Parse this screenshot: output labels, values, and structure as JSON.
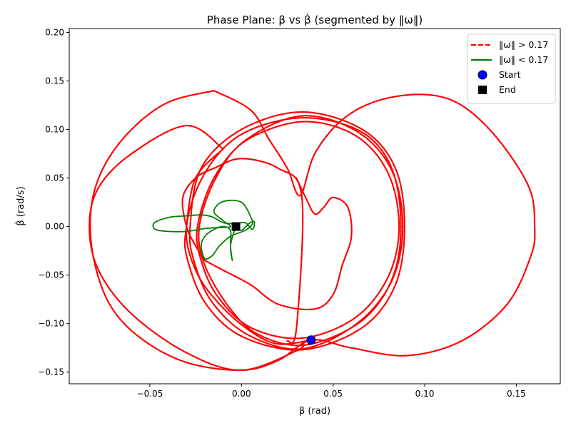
{
  "chart_data": {
    "type": "line",
    "title": "Phase Plane: β vs β̇ (segmented by ‖ω‖)",
    "xlabel": "β (rad)",
    "ylabel": "β̇ (rad/s)",
    "xlim": [
      -0.094,
      0.174
    ],
    "ylim": [
      -0.162,
      0.204
    ],
    "xticks": [
      -0.05,
      0.0,
      0.05,
      0.1,
      0.15
    ],
    "xtick_labels": [
      "−0.05",
      "0.00",
      "0.05",
      "0.10",
      "0.15"
    ],
    "yticks": [
      -0.15,
      -0.1,
      -0.05,
      0.0,
      0.05,
      0.1,
      0.15,
      0.2
    ],
    "ytick_labels": [
      "−0.15",
      "−0.10",
      "−0.05",
      "0.00",
      "0.05",
      "0.10",
      "0.15",
      "0.20"
    ],
    "grid": false,
    "legend_position": "top-right",
    "legend": [
      {
        "label": "‖ω‖ > 0.17",
        "style": "dashed-line",
        "color": "#ff0000"
      },
      {
        "label": "‖ω‖ < 0.17",
        "style": "solid-line",
        "color": "#008000"
      },
      {
        "label": "Start",
        "style": "circle-marker",
        "color": "#0000ff"
      },
      {
        "label": "End",
        "style": "square-marker",
        "color": "#000000"
      }
    ],
    "series": [
      {
        "name": "‖ω‖ > 0.17",
        "color": "#ff0000",
        "style": "dashed",
        "segments": [
          [
            [
              0.038,
              -0.117
            ],
            [
              0.02,
              -0.121
            ],
            [
              0.005,
              -0.108
            ],
            [
              -0.012,
              -0.08
            ],
            [
              -0.025,
              -0.045
            ],
            [
              -0.03,
              0.0
            ],
            [
              -0.02,
              0.055
            ],
            [
              0.0,
              0.095
            ],
            [
              0.033,
              0.112
            ],
            [
              0.065,
              0.098
            ],
            [
              0.082,
              0.06
            ],
            [
              0.087,
              0.0
            ],
            [
              0.082,
              -0.055
            ],
            [
              0.065,
              -0.098
            ],
            [
              0.035,
              -0.122
            ],
            [
              0.01,
              -0.112
            ],
            [
              -0.006,
              -0.085
            ],
            [
              -0.02,
              -0.04
            ],
            [
              -0.023,
              0.0
            ],
            [
              -0.014,
              0.05
            ],
            [
              0.002,
              0.088
            ],
            [
              0.033,
              0.108
            ],
            [
              0.062,
              0.094
            ],
            [
              0.08,
              0.055
            ],
            [
              0.086,
              0.0
            ],
            [
              0.08,
              -0.052
            ],
            [
              0.062,
              -0.094
            ],
            [
              0.033,
              -0.115
            ],
            [
              0.005,
              -0.104
            ],
            [
              -0.013,
              -0.072
            ],
            [
              -0.022,
              -0.035
            ],
            [
              -0.024,
              0.0
            ],
            [
              -0.015,
              0.05
            ],
            [
              0.003,
              0.09
            ],
            [
              0.033,
              0.114
            ],
            [
              0.063,
              0.098
            ],
            [
              0.082,
              0.058
            ],
            [
              0.088,
              0.0
            ],
            [
              0.082,
              -0.056
            ],
            [
              0.063,
              -0.1
            ],
            [
              0.033,
              -0.126
            ],
            [
              0.004,
              -0.112
            ],
            [
              -0.016,
              -0.078
            ],
            [
              -0.026,
              -0.035
            ],
            [
              -0.028,
              0.0
            ],
            [
              -0.022,
              0.06
            ],
            [
              0.0,
              0.1
            ],
            [
              0.033,
              0.118
            ],
            [
              0.066,
              0.1
            ],
            [
              0.084,
              0.06
            ],
            [
              0.089,
              0.0
            ],
            [
              0.084,
              -0.06
            ],
            [
              0.066,
              -0.104
            ],
            [
              0.033,
              -0.127
            ],
            [
              0.0,
              -0.113
            ],
            [
              -0.02,
              -0.078
            ],
            [
              -0.03,
              -0.03
            ],
            [
              -0.03,
              0.0
            ],
            [
              -0.025,
              0.05
            ],
            [
              -0.01,
              0.08
            ]
          ],
          [
            [
              -0.01,
              0.08
            ],
            [
              -0.03,
              0.104
            ],
            [
              -0.06,
              0.075
            ],
            [
              -0.078,
              0.04
            ],
            [
              -0.083,
              0.0
            ],
            [
              -0.078,
              -0.045
            ],
            [
              -0.06,
              -0.09
            ],
            [
              -0.03,
              -0.13
            ],
            [
              0.0,
              -0.148
            ],
            [
              0.03,
              -0.128
            ],
            [
              0.034,
              -0.12
            ]
          ],
          [
            [
              0.025,
              -0.118
            ],
            [
              0.03,
              -0.105
            ],
            [
              0.033,
              0.03
            ],
            [
              0.02,
              0.06
            ],
            [
              0.0,
              0.07
            ],
            [
              -0.015,
              0.06
            ],
            [
              -0.025,
              0.05
            ],
            [
              -0.032,
              0.03
            ],
            [
              -0.03,
              0.0
            ],
            [
              -0.025,
              -0.02
            ],
            [
              -0.02,
              -0.035
            ]
          ],
          [
            [
              -0.02,
              -0.035
            ],
            [
              -0.01,
              -0.045
            ],
            [
              0.005,
              -0.06
            ],
            [
              0.02,
              -0.08
            ],
            [
              0.04,
              -0.085
            ],
            [
              0.05,
              -0.07
            ],
            [
              0.055,
              -0.04
            ],
            [
              0.06,
              -0.01
            ],
            [
              0.058,
              0.02
            ],
            [
              0.05,
              0.03
            ],
            [
              0.045,
              0.02
            ],
            [
              0.04,
              0.013
            ],
            [
              0.035,
              0.03
            ],
            [
              0.03,
              0.05
            ]
          ],
          [
            [
              -0.015,
              0.14
            ],
            [
              -0.04,
              0.128
            ],
            [
              -0.06,
              0.1
            ],
            [
              -0.075,
              0.062
            ],
            [
              -0.082,
              0.02
            ],
            [
              -0.081,
              -0.03
            ],
            [
              -0.072,
              -0.08
            ],
            [
              -0.055,
              -0.115
            ],
            [
              -0.03,
              -0.14
            ],
            [
              0.0,
              -0.148
            ],
            [
              0.02,
              -0.138
            ],
            [
              0.038,
              -0.117
            ],
            [
              0.06,
              -0.125
            ],
            [
              0.09,
              -0.133
            ],
            [
              0.12,
              -0.118
            ],
            [
              0.145,
              -0.08
            ],
            [
              0.158,
              -0.03
            ],
            [
              0.16,
              0.0
            ],
            [
              0.157,
              0.04
            ],
            [
              0.14,
              0.09
            ],
            [
              0.12,
              0.125
            ],
            [
              0.1,
              0.136
            ],
            [
              0.075,
              0.13
            ],
            [
              0.055,
              0.11
            ],
            [
              0.04,
              0.075
            ],
            [
              0.032,
              0.032
            ],
            [
              0.025,
              0.06
            ],
            [
              0.015,
              0.09
            ],
            [
              0.005,
              0.12
            ],
            [
              -0.015,
              0.14
            ]
          ]
        ]
      },
      {
        "name": "‖ω‖ < 0.17",
        "color": "#008000",
        "style": "solid",
        "segments": [
          [
            [
              -0.003,
              0.0
            ],
            [
              0.0,
              -0.004
            ],
            [
              0.004,
              0.003
            ],
            [
              0.007,
              0.005
            ],
            [
              0.006,
              -0.003
            ],
            [
              0.002,
              0.004
            ],
            [
              -0.004,
              0.003
            ],
            [
              -0.01,
              0.004
            ],
            [
              -0.016,
              0.01
            ],
            [
              -0.022,
              0.012
            ],
            [
              -0.03,
              0.011
            ],
            [
              -0.038,
              0.01
            ],
            [
              -0.044,
              0.007
            ],
            [
              -0.048,
              0.003
            ],
            [
              -0.047,
              -0.003
            ],
            [
              -0.04,
              -0.005
            ],
            [
              -0.03,
              -0.005
            ],
            [
              -0.02,
              -0.002
            ],
            [
              -0.012,
              -0.001
            ],
            [
              -0.006,
              0.0
            ],
            [
              -0.01,
              0.006
            ],
            [
              -0.015,
              0.015
            ],
            [
              -0.012,
              0.024
            ],
            [
              -0.006,
              0.027
            ],
            [
              0.0,
              0.025
            ],
            [
              0.003,
              0.018
            ],
            [
              0.005,
              0.01
            ],
            [
              0.006,
              0.003
            ],
            [
              0.002,
              -0.004
            ],
            [
              -0.006,
              -0.01
            ],
            [
              -0.012,
              -0.02
            ],
            [
              -0.016,
              -0.03
            ],
            [
              -0.02,
              -0.033
            ],
            [
              -0.022,
              -0.02
            ],
            [
              -0.02,
              -0.01
            ],
            [
              -0.015,
              -0.003
            ],
            [
              -0.01,
              0.0
            ],
            [
              -0.006,
              -0.004
            ],
            [
              -0.006,
              -0.02
            ],
            [
              -0.005,
              -0.035
            ],
            [
              -0.006,
              -0.02
            ],
            [
              -0.004,
              -0.005
            ],
            [
              -0.003,
              0.0
            ]
          ]
        ]
      }
    ],
    "markers": [
      {
        "name": "Start",
        "x": 0.038,
        "y": -0.117,
        "shape": "circle",
        "color": "#0000ff"
      },
      {
        "name": "End",
        "x": -0.003,
        "y": 0.0,
        "shape": "square",
        "color": "#000000"
      }
    ]
  }
}
